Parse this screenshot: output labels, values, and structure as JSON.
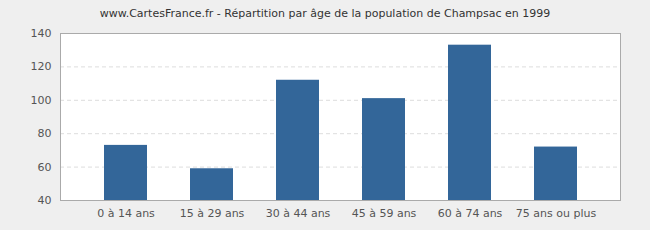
{
  "chart_data": {
    "type": "bar",
    "title": "www.CartesFrance.fr - Répartition par âge de la population de Champsac en 1999",
    "categories": [
      "0 à 14 ans",
      "15 à 29 ans",
      "30 à 44 ans",
      "45 à 59 ans",
      "60 à 74 ans",
      "75 ans ou plus"
    ],
    "values": [
      73,
      59,
      112,
      101,
      133,
      72
    ],
    "color": "#336699",
    "ylim": [
      40,
      140
    ],
    "yticks": [
      40,
      60,
      80,
      100,
      120,
      140
    ],
    "grid": true
  }
}
